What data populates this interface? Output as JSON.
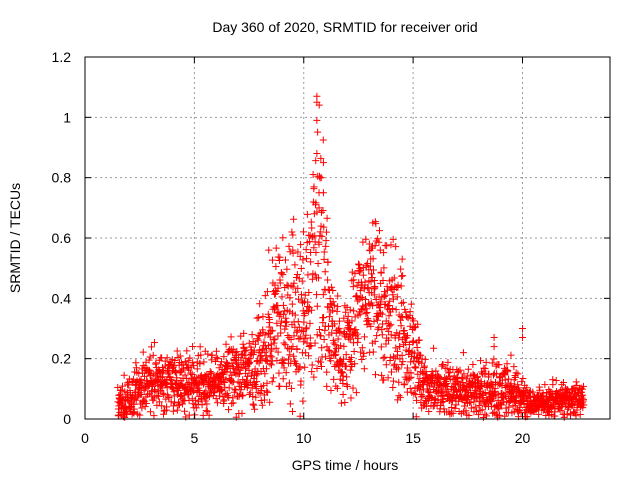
{
  "chart_data": {
    "type": "scatter",
    "title": "Day 360 of 2020, SRMTID for receiver orid",
    "xlabel": "GPS time / hours",
    "ylabel": "SRMTID / TECUs",
    "xlim": [
      0,
      24
    ],
    "ylim": [
      0,
      1.2
    ],
    "xticks": [
      0,
      5,
      10,
      15,
      20
    ],
    "xtick_labels": [
      "0",
      "5",
      "10",
      "15",
      "20"
    ],
    "yticks": [
      0,
      0.2,
      0.4,
      0.6,
      0.8,
      1,
      1.2
    ],
    "ytick_labels": [
      "0",
      "0.2",
      "0.4",
      "0.6",
      "0.8",
      "1",
      "1.2"
    ],
    "grid": true,
    "marker": "+",
    "marker_color": "#ff0000",
    "data_range_hours": [
      1.5,
      22.8
    ],
    "envelope": [
      {
        "x": 1.5,
        "y": 0.04,
        "spread": 0.03
      },
      {
        "x": 2.0,
        "y": 0.07,
        "spread": 0.04
      },
      {
        "x": 2.5,
        "y": 0.1,
        "spread": 0.05
      },
      {
        "x": 3.0,
        "y": 0.12,
        "spread": 0.05
      },
      {
        "x": 4.0,
        "y": 0.12,
        "spread": 0.05
      },
      {
        "x": 5.0,
        "y": 0.12,
        "spread": 0.05
      },
      {
        "x": 6.0,
        "y": 0.13,
        "spread": 0.05
      },
      {
        "x": 7.0,
        "y": 0.15,
        "spread": 0.06
      },
      {
        "x": 7.8,
        "y": 0.17,
        "spread": 0.07
      },
      {
        "x": 8.3,
        "y": 0.25,
        "spread": 0.12
      },
      {
        "x": 8.8,
        "y": 0.35,
        "spread": 0.12
      },
      {
        "x": 9.3,
        "y": 0.3,
        "spread": 0.14
      },
      {
        "x": 9.8,
        "y": 0.3,
        "spread": 0.15
      },
      {
        "x": 10.3,
        "y": 0.45,
        "spread": 0.17
      },
      {
        "x": 10.6,
        "y": 0.6,
        "spread": 0.22
      },
      {
        "x": 11.0,
        "y": 0.4,
        "spread": 0.16
      },
      {
        "x": 11.5,
        "y": 0.25,
        "spread": 0.08
      },
      {
        "x": 12.0,
        "y": 0.24,
        "spread": 0.08
      },
      {
        "x": 12.5,
        "y": 0.35,
        "spread": 0.12
      },
      {
        "x": 13.2,
        "y": 0.42,
        "spread": 0.13
      },
      {
        "x": 14.0,
        "y": 0.35,
        "spread": 0.12
      },
      {
        "x": 14.8,
        "y": 0.25,
        "spread": 0.1
      },
      {
        "x": 15.5,
        "y": 0.12,
        "spread": 0.05
      },
      {
        "x": 16.5,
        "y": 0.1,
        "spread": 0.04
      },
      {
        "x": 17.5,
        "y": 0.08,
        "spread": 0.04
      },
      {
        "x": 18.5,
        "y": 0.1,
        "spread": 0.05
      },
      {
        "x": 19.5,
        "y": 0.09,
        "spread": 0.05
      },
      {
        "x": 20.5,
        "y": 0.05,
        "spread": 0.02
      },
      {
        "x": 21.5,
        "y": 0.06,
        "spread": 0.03
      },
      {
        "x": 22.8,
        "y": 0.06,
        "spread": 0.03
      }
    ],
    "outliers": [
      {
        "x": 10.6,
        "y": 1.07
      },
      {
        "x": 10.6,
        "y": 1.05
      },
      {
        "x": 10.6,
        "y": 0.99
      },
      {
        "x": 10.6,
        "y": 0.88
      },
      {
        "x": 10.9,
        "y": 0.85
      },
      {
        "x": 10.8,
        "y": 0.8
      },
      {
        "x": 10.7,
        "y": 0.75
      },
      {
        "x": 10.9,
        "y": 0.75
      },
      {
        "x": 10.7,
        "y": 0.7
      },
      {
        "x": 8.4,
        "y": 0.56
      },
      {
        "x": 9.5,
        "y": 0.61
      },
      {
        "x": 9.5,
        "y": 0.56
      },
      {
        "x": 13.0,
        "y": 0.58
      },
      {
        "x": 13.5,
        "y": 0.56
      },
      {
        "x": 14.5,
        "y": 0.53
      },
      {
        "x": 20.0,
        "y": 0.3
      },
      {
        "x": 20.0,
        "y": 0.27
      },
      {
        "x": 18.7,
        "y": 0.27
      },
      {
        "x": 18.7,
        "y": 0.24
      },
      {
        "x": 17.3,
        "y": 0.22
      }
    ]
  }
}
